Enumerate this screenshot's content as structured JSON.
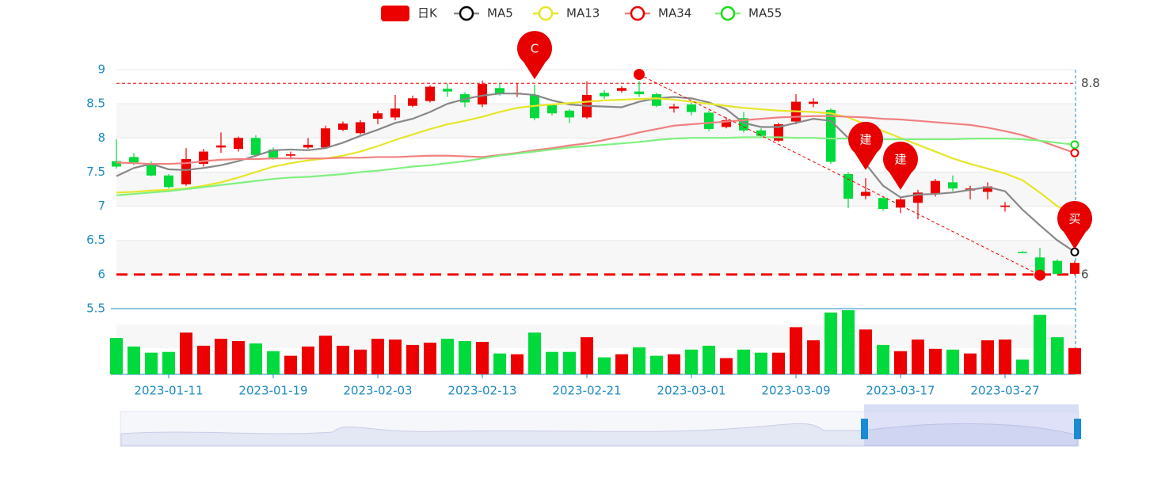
{
  "chart_data": {
    "type": "candlestick",
    "categories": [
      null,
      null,
      null,
      "2023-01-11",
      null,
      null,
      null,
      null,
      null,
      "2023-01-19",
      null,
      null,
      null,
      null,
      null,
      "2023-02-03",
      null,
      null,
      null,
      null,
      null,
      "2023-02-13",
      null,
      null,
      null,
      null,
      null,
      "2023-02-21",
      null,
      null,
      null,
      null,
      null,
      "2023-03-01",
      null,
      null,
      null,
      null,
      null,
      "2023-03-09",
      null,
      null,
      null,
      null,
      null,
      "2023-03-17",
      null,
      null,
      null,
      null,
      null,
      "2023-03-27",
      null,
      null,
      null,
      null
    ],
    "ylim": [
      5.5,
      9
    ],
    "yticks": [
      5.5,
      6,
      6.5,
      7,
      7.5,
      8,
      8.5,
      9
    ],
    "candles": {
      "name": "日K",
      "up_color": "#ec0000",
      "down_color": "#00da3c",
      "open": [
        7.66,
        7.72,
        7.63,
        7.45,
        7.32,
        7.62,
        7.86,
        7.84,
        8.0,
        7.83,
        7.74,
        7.86,
        7.86,
        8.12,
        8.07,
        8.28,
        8.3,
        8.47,
        8.54,
        8.72,
        8.64,
        8.49,
        8.73,
        8.64,
        8.63,
        8.48,
        8.4,
        8.3,
        8.66,
        8.69,
        8.68,
        8.64,
        8.43,
        8.49,
        8.37,
        8.16,
        8.29,
        8.11,
        7.96,
        8.24,
        8.5,
        8.41,
        7.47,
        7.15,
        7.12,
        6.98,
        7.05,
        7.18,
        7.35,
        7.23,
        7.21,
        6.99,
        6.33,
        6.25,
        6.2,
        6.01
      ],
      "close": [
        7.58,
        7.64,
        7.45,
        7.28,
        7.69,
        7.8,
        7.89,
        8.0,
        7.75,
        7.71,
        7.76,
        7.9,
        8.14,
        8.21,
        8.23,
        8.36,
        8.43,
        8.58,
        8.75,
        8.68,
        8.52,
        8.79,
        8.65,
        8.66,
        8.29,
        8.36,
        8.3,
        8.63,
        8.61,
        8.73,
        8.64,
        8.47,
        8.46,
        8.38,
        8.13,
        8.26,
        8.11,
        8.03,
        8.2,
        8.53,
        8.53,
        7.65,
        7.11,
        7.21,
        6.96,
        7.1,
        7.2,
        7.37,
        7.26,
        7.26,
        7.29,
        7.01,
        6.32,
        6.02,
        6.01,
        6.17
      ],
      "low": [
        7.55,
        7.6,
        7.44,
        7.26,
        7.3,
        7.58,
        7.78,
        7.8,
        7.72,
        7.68,
        7.7,
        7.84,
        7.84,
        8.1,
        8.05,
        8.2,
        8.26,
        8.45,
        8.52,
        8.6,
        8.45,
        8.45,
        8.62,
        8.6,
        8.26,
        8.33,
        8.22,
        8.28,
        8.57,
        8.66,
        8.6,
        8.45,
        8.37,
        8.33,
        8.1,
        8.14,
        8.08,
        8.0,
        7.94,
        8.2,
        8.45,
        7.62,
        6.97,
        7.1,
        6.93,
        6.9,
        6.81,
        7.14,
        7.22,
        7.1,
        7.1,
        6.92,
        6.31,
        6.0,
        6.0,
        5.99
      ],
      "high": [
        7.98,
        7.78,
        7.66,
        7.47,
        7.85,
        7.84,
        8.08,
        8.02,
        8.04,
        7.86,
        7.8,
        8.0,
        8.18,
        8.24,
        8.26,
        8.4,
        8.63,
        8.62,
        8.77,
        8.8,
        8.67,
        8.84,
        8.8,
        8.8,
        8.78,
        8.5,
        8.42,
        8.83,
        8.7,
        8.76,
        8.83,
        8.66,
        8.5,
        8.52,
        8.4,
        8.3,
        8.38,
        8.14,
        8.22,
        8.64,
        8.58,
        8.43,
        7.5,
        7.41,
        7.14,
        7.14,
        7.24,
        7.4,
        7.45,
        7.3,
        7.35,
        7.06,
        6.34,
        6.39,
        6.22,
        6.2
      ]
    },
    "series": [
      {
        "name": "MA5",
        "color": "#888888",
        "symbol_color": "#000000",
        "values": [
          7.44,
          7.56,
          7.62,
          7.54,
          7.53,
          7.56,
          7.6,
          7.66,
          7.74,
          7.82,
          7.83,
          7.82,
          7.85,
          7.93,
          8.03,
          8.12,
          8.22,
          8.28,
          8.38,
          8.5,
          8.57,
          8.62,
          8.65,
          8.65,
          8.63,
          8.55,
          8.49,
          8.47,
          8.46,
          8.45,
          8.53,
          8.58,
          8.6,
          8.58,
          8.52,
          8.42,
          8.22,
          8.16,
          8.16,
          8.22,
          8.28,
          8.25,
          8.0,
          7.62,
          7.3,
          7.13,
          7.17,
          7.18,
          7.2,
          7.24,
          7.28,
          7.22,
          6.95,
          6.72,
          6.5,
          6.33
        ]
      },
      {
        "name": "MA13",
        "color": "#e6e629",
        "symbol_color": "#e6e629",
        "values": [
          7.2,
          7.21,
          7.23,
          7.24,
          7.26,
          7.3,
          7.35,
          7.42,
          7.5,
          7.58,
          7.63,
          7.67,
          7.7,
          7.74,
          7.8,
          7.88,
          7.97,
          8.05,
          8.13,
          8.2,
          8.25,
          8.31,
          8.38,
          8.44,
          8.47,
          8.49,
          8.51,
          8.53,
          8.55,
          8.56,
          8.57,
          8.58,
          8.56,
          8.53,
          8.5,
          8.47,
          8.44,
          8.42,
          8.4,
          8.39,
          8.38,
          8.36,
          8.3,
          8.2,
          8.1,
          8.0,
          7.9,
          7.8,
          7.7,
          7.62,
          7.55,
          7.48,
          7.38,
          7.2,
          7.0,
          6.88
        ]
      },
      {
        "name": "MA34",
        "color": "#f08080",
        "symbol_color": "#ec0000",
        "values": [
          7.64,
          7.63,
          7.62,
          7.62,
          7.63,
          7.66,
          7.68,
          7.69,
          7.69,
          7.7,
          7.7,
          7.7,
          7.7,
          7.71,
          7.71,
          7.72,
          7.72,
          7.73,
          7.74,
          7.74,
          7.73,
          7.72,
          7.75,
          7.78,
          7.82,
          7.85,
          7.89,
          7.92,
          7.97,
          8.02,
          8.08,
          8.13,
          8.18,
          8.2,
          8.22,
          8.24,
          8.26,
          8.28,
          8.3,
          8.31,
          8.32,
          8.32,
          8.31,
          8.3,
          8.28,
          8.27,
          8.25,
          8.23,
          8.21,
          8.19,
          8.15,
          8.1,
          8.04,
          7.96,
          7.87,
          7.78
        ]
      },
      {
        "name": "MA55",
        "color": "#80f080",
        "symbol_color": "#1adb1a",
        "values": [
          7.16,
          7.18,
          7.2,
          7.22,
          7.25,
          7.28,
          7.31,
          7.34,
          7.37,
          7.4,
          7.42,
          7.43,
          7.45,
          7.47,
          7.5,
          7.52,
          7.55,
          7.58,
          7.6,
          7.63,
          7.66,
          7.7,
          7.74,
          7.77,
          7.8,
          7.83,
          7.86,
          7.88,
          7.9,
          7.92,
          7.94,
          7.97,
          7.99,
          8.0,
          8.0,
          8.0,
          8.01,
          8.01,
          8.01,
          8.0,
          8.0,
          7.99,
          7.99,
          7.98,
          7.98,
          7.98,
          7.98,
          7.98,
          7.98,
          7.99,
          7.99,
          7.99,
          7.98,
          7.96,
          7.93,
          7.9
        ]
      }
    ],
    "volume": {
      "ylim": [
        0,
        85
      ],
      "values": [
        47,
        36,
        28,
        29,
        54,
        37,
        46,
        43,
        40,
        30,
        24,
        36,
        50,
        37,
        32,
        46,
        45,
        38,
        41,
        46,
        43,
        42,
        27,
        26,
        54,
        29,
        29,
        48,
        22,
        26,
        35,
        24,
        26,
        32,
        37,
        21,
        32,
        28,
        28,
        61,
        44,
        80,
        83,
        58,
        38,
        30,
        45,
        33,
        32,
        27,
        44,
        45,
        19,
        77,
        48,
        34
      ]
    },
    "hlines": [
      8.8,
      6
    ],
    "pins": [
      {
        "label": "C",
        "index": 24,
        "value": 8.86
      },
      {
        "label": "建",
        "index": 43,
        "value": 7.53
      },
      {
        "label": "建",
        "index": 45,
        "value": 7.24
      },
      {
        "label": "买",
        "index": 55,
        "value": 6.37
      }
    ],
    "trend": {
      "from": {
        "index": 30,
        "value": 8.93
      },
      "to": {
        "index": 53,
        "value": 5.99
      }
    }
  }
}
